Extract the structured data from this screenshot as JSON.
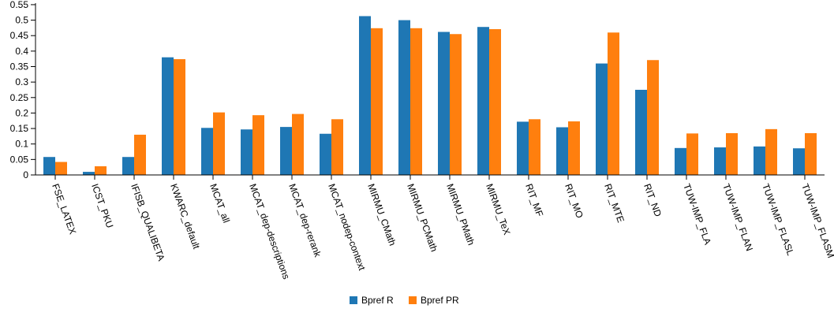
{
  "chart_data": {
    "type": "bar",
    "categories": [
      "FSE_LATEX",
      "ICST_PKU",
      "IFISB_QUALIBETA",
      "KWARC_default",
      "MCAT_all",
      "MCAT_dep-descriptions",
      "MCAT_dep-rerank",
      "MCAT_nodep-context",
      "MIRMU_CMath",
      "MIRMU_PCMath",
      "MIRMU_PMath",
      "MIRMU_TeX",
      "RIT_MF",
      "RIT_MO",
      "RIT_MTE",
      "RIT_ND",
      "TUW-IMP_FLA",
      "TUW-IMP_FLAN",
      "TUW-IMP_FLASL",
      "TUW-IMP_FLASM"
    ],
    "series": [
      {
        "name": "Bpref R",
        "color": "#1f77b4",
        "values": [
          0.058,
          0.01,
          0.058,
          0.38,
          0.152,
          0.147,
          0.155,
          0.133,
          0.513,
          0.5,
          0.462,
          0.478,
          0.172,
          0.154,
          0.36,
          0.275,
          0.087,
          0.089,
          0.092,
          0.086
        ]
      },
      {
        "name": "Bpref PR",
        "color": "#ff7f0e",
        "values": [
          0.042,
          0.028,
          0.13,
          0.374,
          0.202,
          0.193,
          0.197,
          0.18,
          0.474,
          0.474,
          0.455,
          0.471,
          0.18,
          0.173,
          0.46,
          0.371,
          0.134,
          0.135,
          0.148,
          0.135
        ]
      }
    ],
    "ylim": [
      0,
      0.56
    ],
    "yticks": [
      "0",
      "0.05",
      "0.1",
      "0.15",
      "0.2",
      "0.25",
      "0.3",
      "0.35",
      "0.4",
      "0.45",
      "0.5",
      "0.55"
    ],
    "ytick_values": [
      0,
      0.05,
      0.1,
      0.15,
      0.2,
      0.25,
      0.3,
      0.35,
      0.4,
      0.45,
      0.5,
      0.55
    ],
    "grid": false,
    "legend_placement": "bottom-center"
  }
}
